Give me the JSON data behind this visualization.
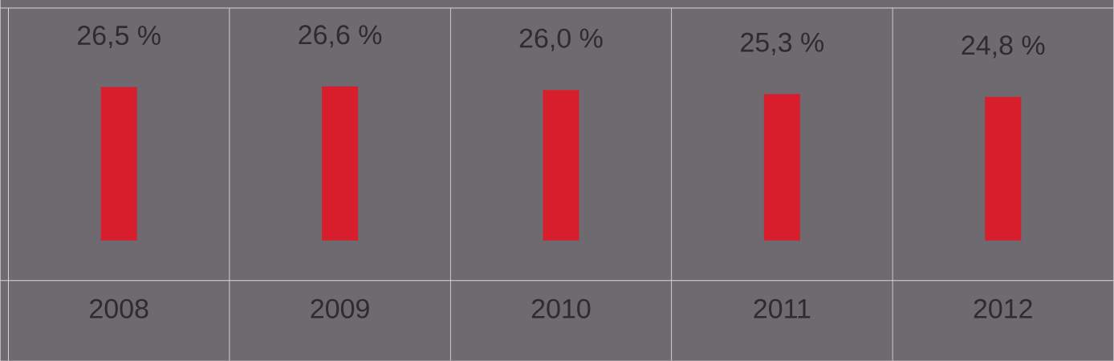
{
  "chart_data": {
    "type": "bar",
    "categories": [
      "2008",
      "2009",
      "2010",
      "2011",
      "2012"
    ],
    "values": [
      26.5,
      26.6,
      26.0,
      25.3,
      24.8
    ],
    "value_labels": [
      "26,5 %",
      "26,6 %",
      "26,0 %",
      "25,3 %",
      "24,8 %"
    ],
    "color": "#d81e2c"
  }
}
